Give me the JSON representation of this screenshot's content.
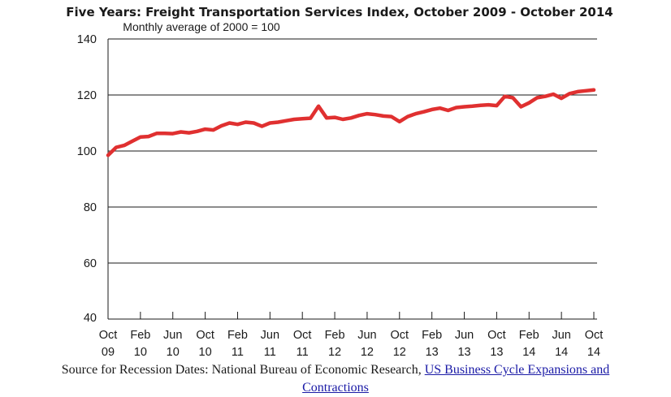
{
  "chart_data": {
    "type": "line",
    "title": "Five Years: Freight Transportation Services Index, October 2009 - October 2014",
    "subtitle": "Monthly average of 2000 = 100",
    "ylim": [
      40,
      140
    ],
    "y_ticks": [
      "140",
      "120",
      "100",
      "80",
      "60",
      "40"
    ],
    "x_tick_labels": [
      [
        "Oct",
        "09"
      ],
      [
        "Feb",
        "10"
      ],
      [
        "Jun",
        "10"
      ],
      [
        "Oct",
        "10"
      ],
      [
        "Feb",
        "11"
      ],
      [
        "Jun",
        "11"
      ],
      [
        "Oct",
        "11"
      ],
      [
        "Feb",
        "12"
      ],
      [
        "Jun",
        "12"
      ],
      [
        "Oct",
        "12"
      ],
      [
        "Feb",
        "13"
      ],
      [
        "Jun",
        "13"
      ],
      [
        "Oct",
        "13"
      ],
      [
        "Feb",
        "14"
      ],
      [
        "Jun",
        "14"
      ],
      [
        "Oct",
        "14"
      ]
    ],
    "grid": "horizontal",
    "line_color": "#e03030",
    "x": [
      "Oct 2009",
      "Nov 2009",
      "Dec 2009",
      "Jan 2010",
      "Feb 2010",
      "Mar 2010",
      "Apr 2010",
      "May 2010",
      "Jun 2010",
      "Jul 2010",
      "Aug 2010",
      "Sep 2010",
      "Oct 2010",
      "Nov 2010",
      "Dec 2010",
      "Jan 2011",
      "Feb 2011",
      "Mar 2011",
      "Apr 2011",
      "May 2011",
      "Jun 2011",
      "Jul 2011",
      "Aug 2011",
      "Sep 2011",
      "Oct 2011",
      "Nov 2011",
      "Dec 2011",
      "Jan 2012",
      "Feb 2012",
      "Mar 2012",
      "Apr 2012",
      "May 2012",
      "Jun 2012",
      "Jul 2012",
      "Aug 2012",
      "Sep 2012",
      "Oct 2012",
      "Nov 2012",
      "Dec 2012",
      "Jan 2013",
      "Feb 2013",
      "Mar 2013",
      "Apr 2013",
      "May 2013",
      "Jun 2013",
      "Jul 2013",
      "Aug 2013",
      "Sep 2013",
      "Oct 2013",
      "Nov 2013",
      "Dec 2013",
      "Jan 2014",
      "Feb 2014",
      "Mar 2014",
      "Apr 2014",
      "May 2014",
      "Jun 2014",
      "Jul 2014",
      "Aug 2014",
      "Sep 2014",
      "Oct 2014"
    ],
    "series": [
      {
        "values": [
          98.5,
          101.3,
          102.0,
          103.5,
          105.0,
          105.2,
          106.3,
          106.3,
          106.2,
          106.8,
          106.5,
          107.0,
          107.8,
          107.5,
          109.0,
          110.0,
          109.5,
          110.3,
          110.0,
          108.8,
          110.0,
          110.3,
          110.8,
          111.3,
          111.5,
          111.7,
          116.0,
          111.8,
          112.0,
          111.3,
          111.8,
          112.7,
          113.3,
          113.0,
          112.5,
          112.3,
          110.5,
          112.3,
          113.3,
          114.0,
          114.8,
          115.3,
          114.5,
          115.5,
          115.8,
          116.0,
          116.3,
          116.5,
          116.2,
          119.5,
          119.0,
          115.8,
          117.2,
          119.0,
          119.5,
          120.3,
          118.8,
          120.5,
          121.2,
          121.5,
          121.8
        ]
      }
    ]
  },
  "source": {
    "prefix": "Source for Recession Dates: National Bureau of Economic Research, ",
    "link_line1": "US Business Cycle Expansions and",
    "link_line2": "Contractions"
  }
}
